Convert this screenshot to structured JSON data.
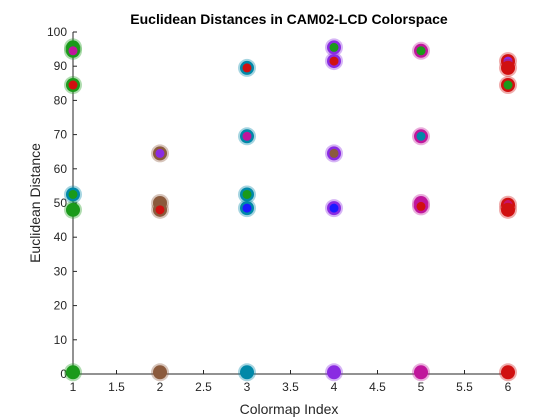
{
  "chart_data": {
    "type": "scatter",
    "title": "Euclidean Distances in CAM02-LCD Colorspace",
    "xlabel": "Colormap Index",
    "ylabel": "Euclidean Distance",
    "xlim": [
      1,
      6
    ],
    "ylim": [
      0,
      100
    ],
    "xticks": [
      1,
      1.5,
      2,
      2.5,
      3,
      3.5,
      4,
      4.5,
      5,
      5.5,
      6
    ],
    "xtick_labels": [
      "1",
      "1.5",
      "2",
      "2.5",
      "3",
      "3.5",
      "4",
      "4.5",
      "5",
      "5.5",
      "6"
    ],
    "yticks": [
      0,
      10,
      20,
      30,
      40,
      50,
      60,
      70,
      80,
      90,
      100
    ],
    "ytick_labels": [
      "0",
      "10",
      "20",
      "30",
      "40",
      "50",
      "60",
      "70",
      "80",
      "90",
      "100"
    ],
    "grid": false,
    "points": [
      {
        "x": 1,
        "y": 95.5,
        "outer": "#1a9a1a",
        "inner": "#1a9a1a"
      },
      {
        "x": 1,
        "y": 94.5,
        "outer": "#1a9a1a",
        "inner": "#c0169c"
      },
      {
        "x": 1,
        "y": 84.5,
        "outer": "#1a9a1a",
        "inner": "#d01010"
      },
      {
        "x": 1,
        "y": 52.5,
        "outer": "#0088a8",
        "inner": "#1a9a1a"
      },
      {
        "x": 1,
        "y": 48,
        "outer": "#1a9a1a",
        "inner": "#1a9a1a"
      },
      {
        "x": 1,
        "y": 0.5,
        "outer": "#1a9a1a",
        "inner": "#1a9a1a"
      },
      {
        "x": 2,
        "y": 64.5,
        "outer": "#8b5a3c",
        "inner": "#8a2be2"
      },
      {
        "x": 2,
        "y": 50,
        "outer": "#8b5a3c",
        "inner": "#8b5a3c"
      },
      {
        "x": 2,
        "y": 48,
        "outer": "#8b5a3c",
        "inner": "#d01010"
      },
      {
        "x": 2,
        "y": 0.5,
        "outer": "#8b5a3c",
        "inner": "#8b5a3c"
      },
      {
        "x": 3,
        "y": 89.5,
        "outer": "#0088a8",
        "inner": "#d01010"
      },
      {
        "x": 3,
        "y": 69.5,
        "outer": "#0088a8",
        "inner": "#c0169c"
      },
      {
        "x": 3,
        "y": 52.5,
        "outer": "#0088a8",
        "inner": "#1a9a1a"
      },
      {
        "x": 3,
        "y": 48.5,
        "outer": "#0088a8",
        "inner": "#1a1aff"
      },
      {
        "x": 3,
        "y": 0.5,
        "outer": "#0088a8",
        "inner": "#0088a8"
      },
      {
        "x": 4,
        "y": 95.5,
        "outer": "#8a2be2",
        "inner": "#1a9a1a"
      },
      {
        "x": 4,
        "y": 91.5,
        "outer": "#8a2be2",
        "inner": "#d01010"
      },
      {
        "x": 4,
        "y": 64.5,
        "outer": "#8a2be2",
        "inner": "#8b5a3c"
      },
      {
        "x": 4,
        "y": 48.5,
        "outer": "#8a2be2",
        "inner": "#1a1aff"
      },
      {
        "x": 4,
        "y": 0.5,
        "outer": "#8a2be2",
        "inner": "#8a2be2"
      },
      {
        "x": 5,
        "y": 94.5,
        "outer": "#c0169c",
        "inner": "#1a9a1a"
      },
      {
        "x": 5,
        "y": 69.5,
        "outer": "#c0169c",
        "inner": "#0088a8"
      },
      {
        "x": 5,
        "y": 50,
        "outer": "#c0169c",
        "inner": "#c0169c"
      },
      {
        "x": 5,
        "y": 49,
        "outer": "#c0169c",
        "inner": "#d01010"
      },
      {
        "x": 5,
        "y": 0.5,
        "outer": "#c0169c",
        "inner": "#c0169c"
      },
      {
        "x": 6,
        "y": 91.5,
        "outer": "#d01010",
        "inner": "#8a2be2"
      },
      {
        "x": 6,
        "y": 89.5,
        "outer": "#d01010",
        "inner": "#d01010"
      },
      {
        "x": 6,
        "y": 84.5,
        "outer": "#d01010",
        "inner": "#1a9a1a"
      },
      {
        "x": 6,
        "y": 49.5,
        "outer": "#d01010",
        "inner": "#c0169c"
      },
      {
        "x": 6,
        "y": 48,
        "outer": "#d01010",
        "inner": "#d01010"
      },
      {
        "x": 6,
        "y": 0.5,
        "outer": "#d01010",
        "inner": "#d01010"
      }
    ]
  }
}
